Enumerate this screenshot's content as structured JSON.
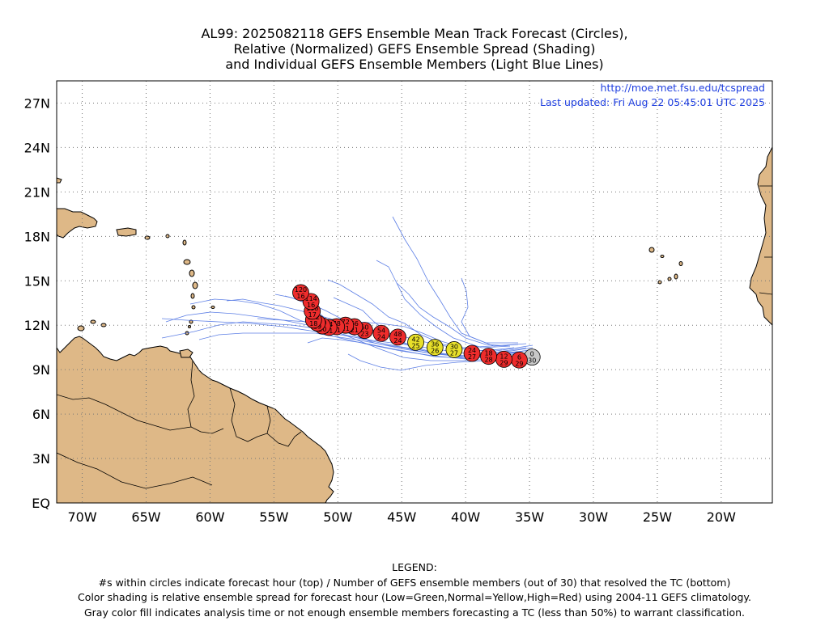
{
  "title": {
    "line1": "AL99: 2025082118 GEFS Ensemble Mean Track Forecast (Circles),",
    "line2": "Relative (Normalized) GEFS Ensemble Spread (Shading)",
    "line3": "and Individual GEFS Ensemble Members (Light Blue Lines)"
  },
  "credit": {
    "url": "http://moe.met.fsu.edu/tcspread",
    "updated": "Last updated: Fri Aug 22 05:45:01 UTC 2025"
  },
  "axes": {
    "lon_labels": [
      "70W",
      "65W",
      "60W",
      "55W",
      "50W",
      "45W",
      "40W",
      "35W",
      "30W",
      "25W",
      "20W"
    ],
    "lon_values": [
      -70,
      -65,
      -60,
      -55,
      -50,
      -45,
      -40,
      -35,
      -30,
      -25,
      -20
    ],
    "lat_labels": [
      "EQ",
      "3N",
      "6N",
      "9N",
      "12N",
      "15N",
      "18N",
      "21N",
      "24N",
      "27N"
    ],
    "lat_values": [
      0,
      3,
      6,
      9,
      12,
      15,
      18,
      21,
      24,
      27
    ],
    "lon_range": [
      -72,
      -16
    ],
    "lat_range": [
      0,
      28.5
    ],
    "grid": "dotted"
  },
  "colors": {
    "land": "#deb887",
    "ocean": "#ffffff",
    "member_tracks": "#4169e1",
    "high_spread": "#ee2c2c",
    "normal_spread": "#e8e02a",
    "analysis_gray": "#c8c8c8",
    "credit_text": "#1f3fe0"
  },
  "mean_track": [
    {
      "hour": "0",
      "members": "30",
      "lon": -34.8,
      "lat": 9.85,
      "spread": "gray"
    },
    {
      "hour": "6",
      "members": "29",
      "lon": -35.8,
      "lat": 9.65,
      "spread": "high"
    },
    {
      "hour": "12",
      "members": "29",
      "lon": -37.0,
      "lat": 9.7,
      "spread": "high"
    },
    {
      "hour": "18",
      "members": "28",
      "lon": -38.2,
      "lat": 9.9,
      "spread": "high"
    },
    {
      "hour": "24",
      "members": "27",
      "lon": -39.5,
      "lat": 10.1,
      "spread": "high"
    },
    {
      "hour": "30",
      "members": "27",
      "lon": -40.9,
      "lat": 10.35,
      "spread": "normal"
    },
    {
      "hour": "36",
      "members": "26",
      "lon": -42.4,
      "lat": 10.5,
      "spread": "normal"
    },
    {
      "hour": "42",
      "members": "25",
      "lon": -43.9,
      "lat": 10.85,
      "spread": "normal"
    },
    {
      "hour": "48",
      "members": "24",
      "lon": -45.3,
      "lat": 11.2,
      "spread": "high"
    },
    {
      "hour": "54",
      "members": "24",
      "lon": -46.6,
      "lat": 11.45,
      "spread": "high"
    },
    {
      "hour": "60",
      "members": "23",
      "lon": -47.9,
      "lat": 11.65,
      "spread": "high"
    },
    {
      "hour": "66",
      "members": "21",
      "lon": -48.7,
      "lat": 11.9,
      "spread": "high"
    },
    {
      "hour": "72",
      "members": "21",
      "lon": -49.4,
      "lat": 12.0,
      "spread": "high"
    },
    {
      "hour": "78",
      "members": "21",
      "lon": -50.1,
      "lat": 11.9,
      "spread": "high"
    },
    {
      "hour": "84",
      "members": "21",
      "lon": -50.7,
      "lat": 11.85,
      "spread": "high"
    },
    {
      "hour": "90",
      "members": "20",
      "lon": -51.2,
      "lat": 11.95,
      "spread": "high"
    },
    {
      "hour": "96",
      "members": "19",
      "lon": -51.6,
      "lat": 12.15,
      "spread": "high"
    },
    {
      "hour": "102",
      "members": "18",
      "lon": -51.9,
      "lat": 12.35,
      "spread": "high"
    },
    {
      "hour": "108",
      "members": "17",
      "lon": -52.0,
      "lat": 12.95,
      "spread": "high"
    },
    {
      "hour": "114",
      "members": "16",
      "lon": -52.1,
      "lat": 13.6,
      "spread": "high"
    },
    {
      "hour": "120",
      "members": "16",
      "lon": -52.9,
      "lat": 14.2,
      "spread": "high"
    }
  ],
  "legend": {
    "heading": "LEGEND:",
    "line1": "#s within circles indicate forecast hour (top) / Number of GEFS ensemble members (out of 30) that resolved the TC (bottom)",
    "line2": "Color shading is relative ensemble spread for forecast hour (Low=Green,Normal=Yellow,High=Red) using 2004-11 GEFS climatology.",
    "line3": "Gray color fill indicates analysis time or not enough ensemble members forecasting a TC (less than 50%) to warrant classification."
  }
}
